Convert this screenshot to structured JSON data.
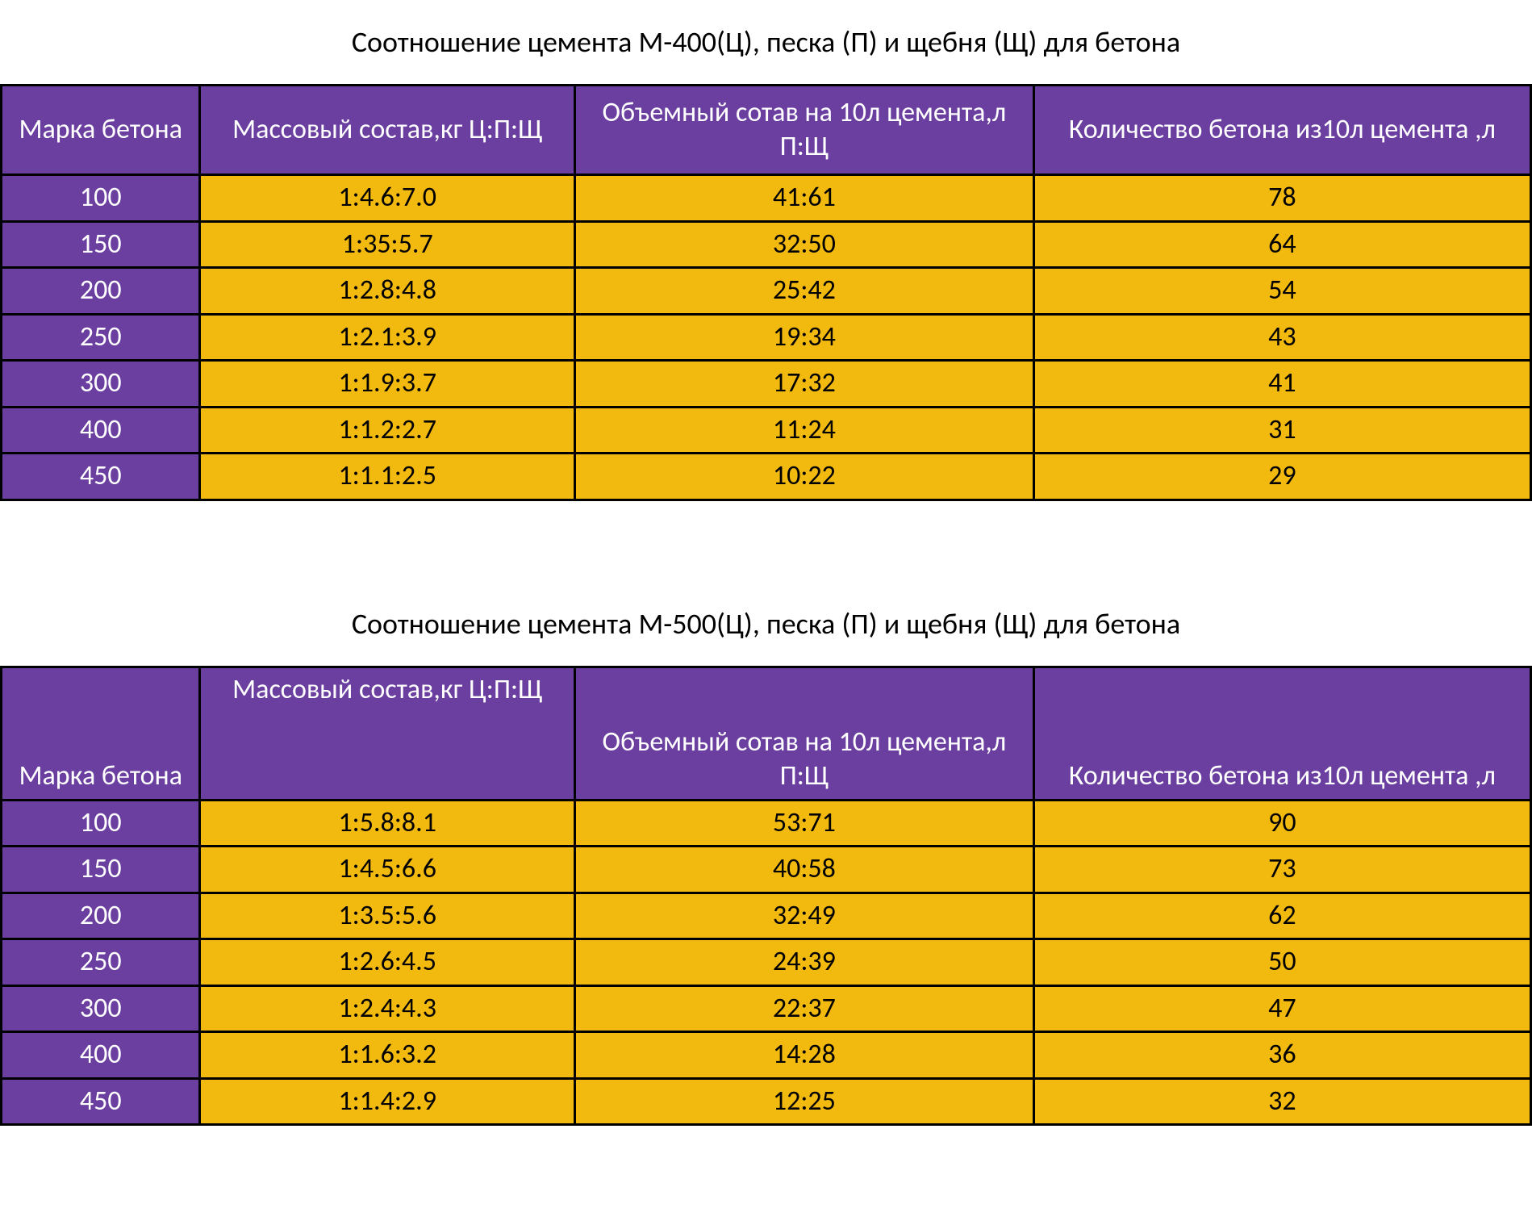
{
  "colors": {
    "header_bg": "#6b3fa0",
    "header_text": "#ffffff",
    "data_bg": "#f2b90f",
    "data_text": "#000000",
    "border": "#000000",
    "title_text": "#000000",
    "page_bg": "#ffffff"
  },
  "typography": {
    "font_family": "Calibri",
    "title_fontsize": 36,
    "cell_fontsize": 34,
    "font_weight": 400
  },
  "table1": {
    "title": "Соотношение цемента М-400(Ц), песка (П) и щебня (Щ) для бетона",
    "columns": [
      "Марка бетона",
      "Массовый состав,кг Ц:П:Щ",
      "Объемный сотав на 10л цемента,л П:Щ",
      "Количество бетона из10л цемента ,л"
    ],
    "rows": [
      [
        "100",
        "1:4.6:7.0",
        "41:61",
        "78"
      ],
      [
        "150",
        "1:35:5.7",
        "32:50",
        "64"
      ],
      [
        "200",
        "1:2.8:4.8",
        "25:42",
        "54"
      ],
      [
        "250",
        "1:2.1:3.9",
        "19:34",
        "43"
      ],
      [
        "300",
        "1:1.9:3.7",
        "17:32",
        "41"
      ],
      [
        "400",
        "1:1.2:2.7",
        "11:24",
        "31"
      ],
      [
        "450",
        "1:1.1:2.5",
        "10:22",
        "29"
      ]
    ]
  },
  "table2": {
    "title": "Соотношение цемента М-500(Ц), песка (П) и щебня (Щ) для бетона",
    "columns": [
      "Марка бетона",
      "Массовый состав,кг Ц:П:Щ",
      "Объемный сотав на 10л цемента,л П:Щ",
      "Количество бетона из10л цемента ,л"
    ],
    "rows": [
      [
        "100",
        "1:5.8:8.1",
        "53:71",
        "90"
      ],
      [
        "150",
        "1:4.5:6.6",
        "40:58",
        "73"
      ],
      [
        "200",
        "1:3.5:5.6",
        "32:49",
        "62"
      ],
      [
        "250",
        "1:2.6:4.5",
        "24:39",
        "50"
      ],
      [
        "300",
        "1:2.4:4.3",
        "22:37",
        "47"
      ],
      [
        "400",
        "1:1.6:3.2",
        "14:28",
        "36"
      ],
      [
        "450",
        "1:1.4:2.9",
        "12:25",
        "32"
      ]
    ]
  }
}
